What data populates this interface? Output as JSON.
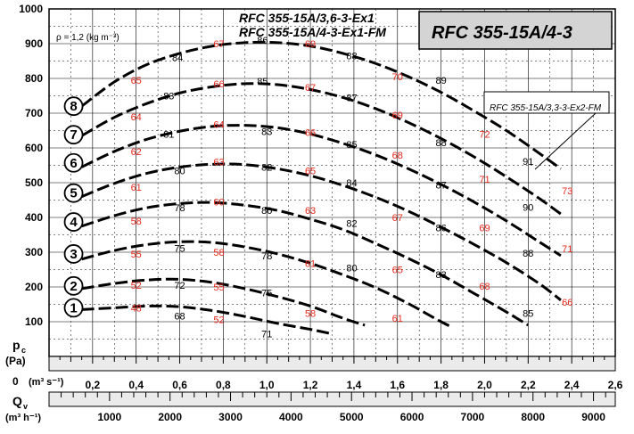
{
  "chart_data": {
    "type": "line",
    "titles": {
      "model_line_1": "RFC 355-15A/3,6-3-Ex1",
      "model_line_2": "RFC 355-15A/4-3-Ex1-FM",
      "main_title": "RFC 355-15A/4-3",
      "callout_label": "RFC 355-15A/3,3-3-Ex2-FM",
      "density": "ρ = 1,2 (kg m⁻³)"
    },
    "axes": {
      "y_label_top": "p",
      "y_label_sub": "c",
      "y_unit": "(Pa)",
      "y_ticks": [
        "1000",
        "900",
        "800",
        "700",
        "600",
        "500",
        "400",
        "300",
        "200",
        "100",
        "0"
      ],
      "x_flow_label": "Q",
      "x_flow_sub": "v",
      "x_unit_m3s": "(m³ s⁻¹)",
      "x_unit_m3h": "(m³ h⁻¹)",
      "x_ticks_m3s": [
        "0,2",
        "0,4",
        "0,6",
        "0,8",
        "1,0",
        "1,2",
        "1,4",
        "1,6",
        "1,8",
        "2,0",
        "2,2",
        "2,4",
        "2,6"
      ],
      "x_ticks_m3h": [
        "1000",
        "2000",
        "3000",
        "4000",
        "5000",
        "6000",
        "7000",
        "8000",
        "9000"
      ],
      "xlim": [
        0,
        2.6
      ],
      "ylim": [
        0,
        1000
      ]
    },
    "series": [
      {
        "name": "1",
        "points": [
          [
            0.15,
            135
          ],
          [
            0.3,
            140
          ],
          [
            0.45,
            145
          ],
          [
            0.6,
            143
          ],
          [
            0.75,
            132
          ],
          [
            0.9,
            115
          ],
          [
            1.05,
            95
          ],
          [
            1.2,
            78
          ],
          [
            1.3,
            65
          ]
        ]
      },
      {
        "name": "2",
        "points": [
          [
            0.15,
            195
          ],
          [
            0.3,
            210
          ],
          [
            0.45,
            220
          ],
          [
            0.6,
            222
          ],
          [
            0.75,
            213
          ],
          [
            0.9,
            195
          ],
          [
            1.05,
            172
          ],
          [
            1.2,
            145
          ],
          [
            1.35,
            110
          ],
          [
            1.45,
            90
          ]
        ]
      },
      {
        "name": "3",
        "points": [
          [
            0.15,
            280
          ],
          [
            0.3,
            305
          ],
          [
            0.45,
            322
          ],
          [
            0.6,
            330
          ],
          [
            0.75,
            328
          ],
          [
            0.9,
            315
          ],
          [
            1.05,
            295
          ],
          [
            1.2,
            268
          ],
          [
            1.35,
            235
          ],
          [
            1.5,
            198
          ],
          [
            1.65,
            152
          ],
          [
            1.8,
            100
          ],
          [
            1.85,
            85
          ]
        ]
      },
      {
        "name": "4",
        "points": [
          [
            0.15,
            375
          ],
          [
            0.3,
            405
          ],
          [
            0.45,
            428
          ],
          [
            0.6,
            440
          ],
          [
            0.75,
            443
          ],
          [
            0.9,
            435
          ],
          [
            1.05,
            420
          ],
          [
            1.2,
            395
          ],
          [
            1.35,
            365
          ],
          [
            1.5,
            325
          ],
          [
            1.65,
            282
          ],
          [
            1.8,
            235
          ],
          [
            1.95,
            182
          ],
          [
            2.1,
            128
          ],
          [
            2.2,
            90
          ]
        ]
      },
      {
        "name": "5",
        "points": [
          [
            0.15,
            460
          ],
          [
            0.3,
            498
          ],
          [
            0.45,
            527
          ],
          [
            0.6,
            545
          ],
          [
            0.75,
            553
          ],
          [
            0.9,
            552
          ],
          [
            1.05,
            540
          ],
          [
            1.2,
            520
          ],
          [
            1.35,
            492
          ],
          [
            1.5,
            458
          ],
          [
            1.65,
            418
          ],
          [
            1.8,
            372
          ],
          [
            1.95,
            323
          ],
          [
            2.1,
            270
          ],
          [
            2.25,
            210
          ],
          [
            2.35,
            162
          ]
        ]
      },
      {
        "name": "6",
        "points": [
          [
            0.15,
            545
          ],
          [
            0.3,
            590
          ],
          [
            0.45,
            625
          ],
          [
            0.6,
            648
          ],
          [
            0.75,
            662
          ],
          [
            0.9,
            665
          ],
          [
            1.05,
            658
          ],
          [
            1.2,
            640
          ],
          [
            1.35,
            613
          ],
          [
            1.5,
            580
          ],
          [
            1.65,
            540
          ],
          [
            1.8,
            495
          ],
          [
            1.95,
            445
          ],
          [
            2.1,
            390
          ],
          [
            2.25,
            330
          ],
          [
            2.35,
            290
          ]
        ]
      },
      {
        "name": "7",
        "points": [
          [
            0.15,
            635
          ],
          [
            0.3,
            688
          ],
          [
            0.45,
            728
          ],
          [
            0.6,
            758
          ],
          [
            0.75,
            776
          ],
          [
            0.9,
            785
          ],
          [
            1.05,
            782
          ],
          [
            1.2,
            768
          ],
          [
            1.35,
            745
          ],
          [
            1.5,
            713
          ],
          [
            1.65,
            673
          ],
          [
            1.8,
            627
          ],
          [
            1.95,
            575
          ],
          [
            2.1,
            517
          ],
          [
            2.25,
            455
          ],
          [
            2.35,
            410
          ]
        ]
      },
      {
        "name": "8",
        "points": [
          [
            0.15,
            720
          ],
          [
            0.3,
            790
          ],
          [
            0.45,
            840
          ],
          [
            0.6,
            872
          ],
          [
            0.75,
            893
          ],
          [
            0.9,
            903
          ],
          [
            1.05,
            903
          ],
          [
            1.2,
            893
          ],
          [
            1.35,
            872
          ],
          [
            1.5,
            843
          ],
          [
            1.65,
            805
          ],
          [
            1.8,
            760
          ],
          [
            1.95,
            707
          ],
          [
            2.1,
            650
          ],
          [
            2.25,
            585
          ],
          [
            2.35,
            540
          ]
        ]
      }
    ],
    "curve_numbers": [
      {
        "label": "1",
        "q": 0.08,
        "p": 140
      },
      {
        "label": "2",
        "q": 0.08,
        "p": 203
      },
      {
        "label": "3",
        "q": 0.08,
        "p": 295
      },
      {
        "label": "4",
        "q": 0.08,
        "p": 387
      },
      {
        "label": "5",
        "q": 0.08,
        "p": 470
      },
      {
        "label": "6",
        "q": 0.08,
        "p": 557
      },
      {
        "label": "7",
        "q": 0.08,
        "p": 638
      },
      {
        "label": "8",
        "q": 0.08,
        "p": 720
      }
    ],
    "black_labels": [
      {
        "text": "86",
        "q": 0.98,
        "p": 910
      },
      {
        "text": "84",
        "q": 0.59,
        "p": 860
      },
      {
        "text": "88",
        "q": 1.39,
        "p": 865
      },
      {
        "text": "89",
        "q": 1.8,
        "p": 795
      },
      {
        "text": "85",
        "q": 0.98,
        "p": 792
      },
      {
        "text": "83",
        "q": 0.55,
        "p": 750
      },
      {
        "text": "87",
        "q": 1.39,
        "p": 745
      },
      {
        "text": "88",
        "q": 1.8,
        "p": 615
      },
      {
        "text": "81",
        "q": 0.55,
        "p": 640
      },
      {
        "text": "83",
        "q": 1.0,
        "p": 648
      },
      {
        "text": "85",
        "q": 1.39,
        "p": 610
      },
      {
        "text": "91",
        "q": 2.2,
        "p": 562
      },
      {
        "text": "80",
        "q": 0.6,
        "p": 535
      },
      {
        "text": "82",
        "q": 1.0,
        "p": 545
      },
      {
        "text": "84",
        "q": 1.39,
        "p": 500
      },
      {
        "text": "87",
        "q": 1.8,
        "p": 493
      },
      {
        "text": "90",
        "q": 2.2,
        "p": 430
      },
      {
        "text": "78",
        "q": 0.6,
        "p": 428
      },
      {
        "text": "80",
        "q": 1.0,
        "p": 420
      },
      {
        "text": "82",
        "q": 1.39,
        "p": 383
      },
      {
        "text": "86",
        "q": 1.8,
        "p": 370
      },
      {
        "text": "88",
        "q": 2.2,
        "p": 298
      },
      {
        "text": "75",
        "q": 0.6,
        "p": 312
      },
      {
        "text": "78",
        "q": 1.0,
        "p": 290
      },
      {
        "text": "83",
        "q": 1.8,
        "p": 236
      },
      {
        "text": "72",
        "q": 0.6,
        "p": 205
      },
      {
        "text": "80",
        "q": 1.39,
        "p": 255
      },
      {
        "text": "85",
        "q": 2.2,
        "p": 125
      },
      {
        "text": "68",
        "q": 0.6,
        "p": 117
      },
      {
        "text": "75",
        "q": 1.0,
        "p": 183
      },
      {
        "text": "71",
        "q": 1.0,
        "p": 65
      }
    ],
    "red_labels": [
      {
        "text": "67",
        "q": 0.78,
        "p": 900
      },
      {
        "text": "69",
        "q": 1.2,
        "p": 900
      },
      {
        "text": "70",
        "q": 1.6,
        "p": 805
      },
      {
        "text": "65",
        "q": 0.4,
        "p": 795
      },
      {
        "text": "66",
        "q": 0.78,
        "p": 785
      },
      {
        "text": "67",
        "q": 1.2,
        "p": 775
      },
      {
        "text": "72",
        "q": 2.0,
        "p": 640
      },
      {
        "text": "64",
        "q": 0.4,
        "p": 690
      },
      {
        "text": "69",
        "q": 1.6,
        "p": 695
      },
      {
        "text": "64",
        "q": 0.78,
        "p": 668
      },
      {
        "text": "66",
        "q": 1.2,
        "p": 645
      },
      {
        "text": "62",
        "q": 0.4,
        "p": 590
      },
      {
        "text": "68",
        "q": 1.6,
        "p": 580
      },
      {
        "text": "71",
        "q": 2.0,
        "p": 510
      },
      {
        "text": "63",
        "q": 0.78,
        "p": 560
      },
      {
        "text": "65",
        "q": 1.2,
        "p": 535
      },
      {
        "text": "73",
        "q": 2.38,
        "p": 477
      },
      {
        "text": "61",
        "q": 0.4,
        "p": 487
      },
      {
        "text": "60",
        "q": 0.78,
        "p": 445
      },
      {
        "text": "63",
        "q": 1.2,
        "p": 420
      },
      {
        "text": "67",
        "q": 1.6,
        "p": 400
      },
      {
        "text": "69",
        "q": 2.0,
        "p": 370
      },
      {
        "text": "58",
        "q": 0.4,
        "p": 390
      },
      {
        "text": "71",
        "q": 2.38,
        "p": 310
      },
      {
        "text": "55",
        "q": 0.4,
        "p": 295
      },
      {
        "text": "58",
        "q": 0.78,
        "p": 300
      },
      {
        "text": "61",
        "q": 1.2,
        "p": 268
      },
      {
        "text": "65",
        "q": 1.6,
        "p": 250
      },
      {
        "text": "68",
        "q": 2.0,
        "p": 203
      },
      {
        "text": "52",
        "q": 0.4,
        "p": 205
      },
      {
        "text": "55",
        "q": 0.78,
        "p": 200
      },
      {
        "text": "58",
        "q": 1.2,
        "p": 125
      },
      {
        "text": "66",
        "q": 2.38,
        "p": 157
      },
      {
        "text": "48",
        "q": 0.4,
        "p": 140
      },
      {
        "text": "52",
        "q": 0.78,
        "p": 107
      },
      {
        "text": "61",
        "q": 1.6,
        "p": 110
      }
    ],
    "grid": true,
    "colors": {
      "curve": "#000000",
      "red_label": "#e8281c",
      "title_box": "#d4d4d4"
    }
  }
}
